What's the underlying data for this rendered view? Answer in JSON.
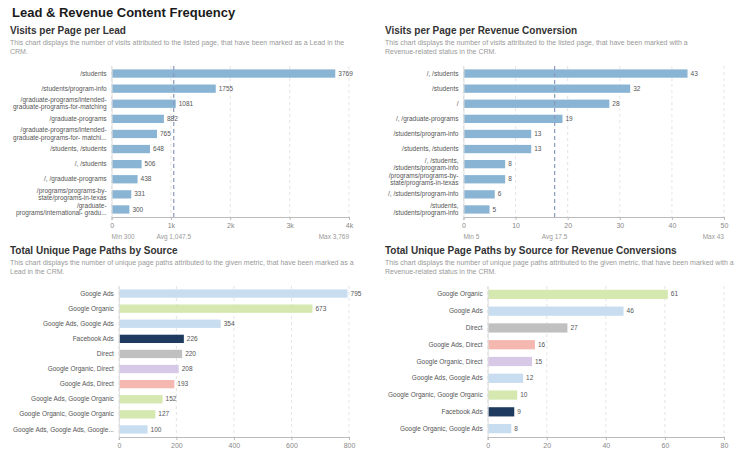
{
  "title": "Lead & Revenue Content Frequency",
  "chart_data": [
    {
      "type": "bar",
      "orientation": "horizontal",
      "title": "Visits per Page per Lead",
      "subtitle": "This chart displays the number of visits attributed to the listed page, that have been marked as a Lead in the CRM.",
      "categories": [
        "/students",
        "/students/program-info",
        "/graduate-programs/intended-\ngraduate-programs-for-matching",
        "/graduate-programs",
        "/graduate-programs/intended-\ngraduate-programs-for- matchi...",
        "/students, /students",
        "/, /students",
        "/, /graduate-programs",
        "/programs/programs-by-\nstate/programs-in-texas",
        "/graduate-\nprograms/international- gradu..."
      ],
      "values": [
        3769,
        1755,
        1081,
        882,
        765,
        648,
        506,
        438,
        331,
        300
      ],
      "color": "#8ab4d4",
      "xlim": [
        0,
        4000
      ],
      "xticks": [
        0,
        {
          "value": 1000,
          "label": "1k"
        },
        {
          "value": 2000,
          "label": "2k"
        },
        {
          "value": 3000,
          "label": "3k"
        },
        {
          "value": 4000,
          "label": "4k"
        }
      ],
      "grid": true,
      "data_labels": true,
      "average": 1047.5,
      "annotations": [
        "Min 300",
        "Avg 1,047.5",
        "Max 3,769"
      ]
    },
    {
      "type": "bar",
      "orientation": "horizontal",
      "title": "Visits per Page per Revenue Conversion",
      "subtitle": "This chart displays the number of visits attributed to the listed page, that have been marked with a Revenue-related status in the CRM.",
      "categories": [
        "/, /students",
        "/students",
        "/",
        "/, /graduate-programs",
        "/students/program-info",
        "/students, /students",
        "/, /students,\n/students/program-info",
        "/programs/programs-by-\nstate/programs-in-texas",
        "/, /students/program-info",
        "/students,\n/students/program-info"
      ],
      "values": [
        43,
        32,
        28,
        19,
        13,
        13,
        8,
        8,
        6,
        5
      ],
      "color": "#8ab4d4",
      "xlim": [
        0,
        50
      ],
      "xticks": [
        0,
        10,
        20,
        30,
        40,
        50
      ],
      "grid": true,
      "data_labels": true,
      "average": 17.5,
      "annotations": [
        "Min 5",
        "Avg 17.5",
        "Max 43"
      ]
    },
    {
      "type": "bar",
      "orientation": "horizontal",
      "title": "Total Unique Page Paths by Source",
      "subtitle": "This chart displays the number of unique page paths attributed to the given metric, that have been marked as a Lead in the CRM.",
      "categories": [
        "Google Ads",
        "Google Organic",
        "Google Ads, Google Ads",
        "Facebook Ads",
        "Direct",
        "Google Organic, Direct",
        "Google Ads, Direct",
        "Google Ads, Google Organic",
        "Google Organic, Google Organic",
        "Google Ads, Google Ads, Google..."
      ],
      "values": [
        795,
        673,
        354,
        226,
        220,
        208,
        193,
        152,
        127,
        100
      ],
      "colors": [
        "#c8ddf0",
        "#d4e8b0",
        "#c8ddf0",
        "#1e3a5f",
        "#c0c0c0",
        "#d8c8e8",
        "#f4b8b0",
        "#d4e8b0",
        "#d4e8b0",
        "#c8ddf0"
      ],
      "xlim": [
        0,
        800
      ],
      "xticks": [
        0,
        200,
        400,
        600,
        800
      ],
      "grid": true,
      "data_labels": true
    },
    {
      "type": "bar",
      "orientation": "horizontal",
      "title": "Total Unique Page Paths by Source for Revenue Conversions",
      "subtitle": "This chart displays the number of unique page paths attributed to the given metric, that have been marked with a Revenue-related status in the CRM.",
      "categories": [
        "Google Organic",
        "Google Ads",
        "Direct",
        "Google Ads, Direct",
        "Google Organic, Direct",
        "Google Ads, Google Ads",
        "Google Organic, Google Organic",
        "Facebook Ads",
        "Google Organic, Google Ads"
      ],
      "values": [
        61,
        46,
        27,
        16,
        15,
        12,
        10,
        9,
        8
      ],
      "colors": [
        "#d4e8b0",
        "#c8ddf0",
        "#c0c0c0",
        "#f4b8b0",
        "#d8c8e8",
        "#c8ddf0",
        "#d4e8b0",
        "#1e3a5f",
        "#c8ddf0"
      ],
      "xlim": [
        0,
        80
      ],
      "xticks": [
        0,
        20,
        40,
        60,
        80
      ],
      "grid": true,
      "data_labels": true
    }
  ]
}
